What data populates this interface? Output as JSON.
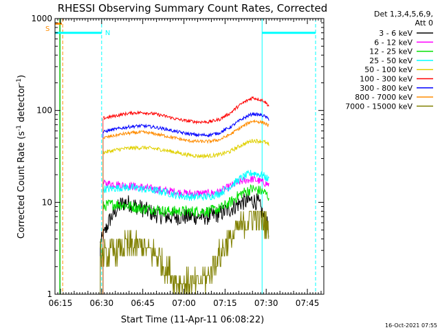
{
  "chart_data": {
    "type": "line",
    "title": "RHESSI Observing Summary Count Rates, Corrected",
    "xlabel": "Start Time (11-Apr-11 06:08:22)",
    "ylabel_main": "Corrected Count Rate (s",
    "ylabel_sup1": "-1",
    "ylabel_mid": " detector",
    "ylabel_sup2": "-1",
    "ylabel_end": ")",
    "y_scale": "log",
    "ylim": [
      1,
      1000
    ],
    "xlim_minutes": [
      6.0,
      104.0
    ],
    "x_ticks": [
      {
        "min": 8,
        "label": "06:15"
      },
      {
        "min": 23,
        "label": "06:30"
      },
      {
        "min": 38,
        "label": "06:45"
      },
      {
        "min": 53,
        "label": "07:00"
      },
      {
        "min": 68,
        "label": "07:15"
      },
      {
        "min": 83,
        "label": "07:30"
      },
      {
        "min": 98,
        "label": "07:45"
      }
    ],
    "y_ticks": [
      {
        "value": 1,
        "label": "1"
      },
      {
        "value": 10,
        "label": "10"
      },
      {
        "value": 100,
        "label": "100"
      },
      {
        "value": 1000,
        "label": "1000"
      }
    ],
    "legend": {
      "position": "right",
      "header": [
        "Det 1,3,4,5,6,9,",
        "Att 0"
      ],
      "entries": [
        {
          "label": "3 - 6 keV",
          "color": "#000000"
        },
        {
          "label": "6 - 12 keV",
          "color": "#ff00ff"
        },
        {
          "label": "12 - 25 keV",
          "color": "#00e000"
        },
        {
          "label": "25 - 50 keV",
          "color": "#00ffff"
        },
        {
          "label": "50 - 100 keV",
          "color": "#e0d000"
        },
        {
          "label": "100 - 300 keV",
          "color": "#ff0000"
        },
        {
          "label": "300 - 800 keV",
          "color": "#0000ff"
        },
        {
          "label": "800 - 7000 keV",
          "color": "#ff8c00"
        },
        {
          "label": "7000 - 15000 keV",
          "color": "#808000"
        }
      ]
    },
    "data_window_minutes": [
      23.5,
      84.0
    ],
    "series": [
      {
        "name": "3 - 6 keV",
        "color": "#000000",
        "x": [
          22.5,
          24,
          26,
          28,
          30,
          32,
          34,
          38,
          42,
          46,
          50,
          54,
          58,
          62,
          66,
          70,
          74,
          78,
          80,
          82,
          84
        ],
        "y": [
          3.5,
          4.5,
          6.5,
          8,
          9.5,
          10,
          9.5,
          8.5,
          7.5,
          7,
          7,
          7,
          7,
          7,
          7.5,
          8.5,
          10,
          10.5,
          10,
          7,
          5
        ]
      },
      {
        "name": "6 - 12 keV",
        "color": "#ff00ff",
        "x": [
          23.5,
          26,
          30,
          34,
          38,
          42,
          46,
          50,
          54,
          58,
          62,
          66,
          70,
          74,
          78,
          82,
          84
        ],
        "y": [
          16,
          16,
          15.5,
          15,
          14.5,
          14,
          13.5,
          13,
          12.5,
          12.5,
          12.5,
          13,
          15,
          17,
          18,
          16.5,
          15.5
        ]
      },
      {
        "name": "12 - 25 keV",
        "color": "#00e000",
        "x": [
          23.5,
          26,
          30,
          34,
          38,
          42,
          46,
          50,
          54,
          58,
          62,
          66,
          70,
          74,
          78,
          82,
          84
        ],
        "y": [
          9,
          9.5,
          9.5,
          9,
          8.5,
          8.5,
          8,
          8,
          8,
          8,
          8,
          8.5,
          10,
          12.5,
          14,
          13,
          11.5
        ]
      },
      {
        "name": "25 - 50 keV",
        "color": "#00ffff",
        "x": [
          23.5,
          26,
          30,
          34,
          38,
          42,
          46,
          50,
          54,
          58,
          62,
          66,
          70,
          74,
          78,
          82,
          84
        ],
        "y": [
          14,
          14,
          14.5,
          14.5,
          14,
          13.5,
          13,
          12,
          11.5,
          11.5,
          11.5,
          12.5,
          15,
          18.5,
          21,
          19.5,
          17.5
        ]
      },
      {
        "name": "50 - 100 keV",
        "color": "#e0d000",
        "x": [
          23.5,
          26,
          30,
          34,
          38,
          42,
          46,
          50,
          54,
          58,
          62,
          66,
          70,
          74,
          78,
          82,
          84
        ],
        "y": [
          35,
          36,
          38,
          39,
          39.5,
          38.5,
          37,
          35,
          33,
          32,
          32,
          33,
          36,
          42,
          47,
          46,
          42
        ]
      },
      {
        "name": "100 - 300 keV",
        "color": "#ff0000",
        "x": [
          23.5,
          26,
          30,
          34,
          38,
          42,
          46,
          50,
          54,
          58,
          62,
          66,
          70,
          74,
          78,
          82,
          84
        ],
        "y": [
          82,
          85,
          90,
          94,
          95,
          92,
          87,
          81,
          77,
          75,
          75,
          80,
          94,
          118,
          138,
          128,
          112
        ]
      },
      {
        "name": "300 - 800 keV",
        "color": "#0000ff",
        "x": [
          23.5,
          26,
          30,
          34,
          38,
          42,
          46,
          50,
          54,
          58,
          62,
          66,
          70,
          74,
          78,
          82,
          84
        ],
        "y": [
          58,
          61,
          64,
          67,
          68,
          66,
          63,
          59,
          56,
          54,
          54,
          57,
          66,
          80,
          92,
          88,
          80
        ]
      },
      {
        "name": "800 - 7000 keV",
        "color": "#ff8c00",
        "x": [
          23.5,
          26,
          30,
          34,
          38,
          42,
          46,
          50,
          54,
          58,
          62,
          66,
          70,
          74,
          78,
          82,
          84
        ],
        "y": [
          50,
          52,
          55,
          57,
          58,
          56,
          53,
          50,
          47,
          46,
          46,
          48,
          55,
          66,
          77,
          74,
          68
        ]
      },
      {
        "name": "7000 - 15000 keV",
        "color": "#808000",
        "x": [
          22.5,
          26,
          30,
          34,
          38,
          42,
          46,
          50,
          54,
          58,
          62,
          66,
          70,
          74,
          78,
          82,
          84
        ],
        "y": [
          2.6,
          2.6,
          3.2,
          3.4,
          3.3,
          2.8,
          2.0,
          1.4,
          1.3,
          1.3,
          1.6,
          2.7,
          4.0,
          5.6,
          7.0,
          6.2,
          5.0
        ]
      }
    ],
    "annotations": [
      {
        "label": "S",
        "color": "#ff8c00"
      },
      {
        "label": "N",
        "color": "#00ffff"
      }
    ],
    "footer": "16-Oct-2021 07:55"
  },
  "palette": {
    "saa": "#ff8c00",
    "night": "#00ffff",
    "green_line": "#00c000"
  }
}
